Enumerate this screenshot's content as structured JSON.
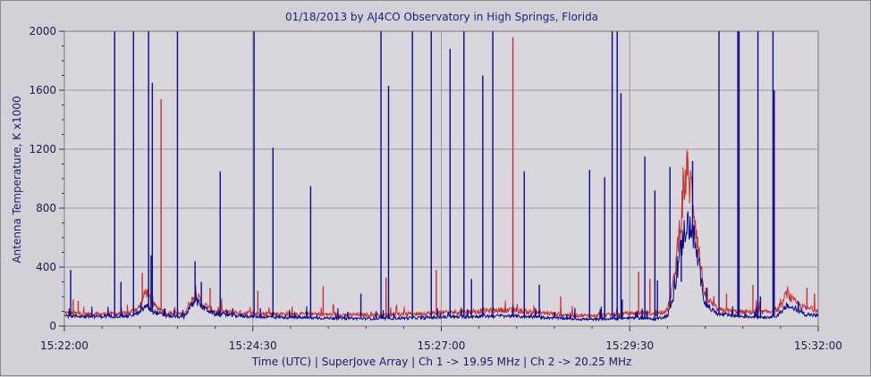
{
  "chart_data": {
    "type": "line",
    "title": "01/18/2013  by  AJ4CO Observatory  in  High Springs, Florida",
    "xlabel": "Time (UTC)  |  SuperJove Array  |  Ch 1 -> 19.95 MHz  |  Ch 2 -> 20.25 MHz",
    "ylabel": "Antenna Temperature, K x1000",
    "ylim": [
      0,
      2000
    ],
    "xlim_seconds_from_start": [
      0,
      600
    ],
    "yticks": [
      "0",
      "400",
      "800",
      "1200",
      "1600",
      "2000"
    ],
    "xticks": [
      "15:22:00",
      "15:24:30",
      "15:27:00",
      "15:29:30",
      "15:32:00"
    ],
    "grid": true,
    "series": [
      {
        "name": "Ch 1 -> 19.95 MHz",
        "color": "#0a0a8a",
        "baseline_points": [
          [
            0,
            70
          ],
          [
            20,
            65
          ],
          [
            50,
            68
          ],
          [
            60,
            90
          ],
          [
            65,
            140
          ],
          [
            70,
            100
          ],
          [
            80,
            70
          ],
          [
            95,
            60
          ],
          [
            100,
            130
          ],
          [
            105,
            170
          ],
          [
            110,
            130
          ],
          [
            120,
            80
          ],
          [
            150,
            65
          ],
          [
            200,
            55
          ],
          [
            250,
            50
          ],
          [
            300,
            60
          ],
          [
            350,
            70
          ],
          [
            380,
            60
          ],
          [
            400,
            50
          ],
          [
            420,
            45
          ],
          [
            440,
            50
          ],
          [
            450,
            55
          ],
          [
            460,
            55
          ],
          [
            470,
            45
          ],
          [
            480,
            70
          ],
          [
            485,
            200
          ],
          [
            490,
            500
          ],
          [
            495,
            700
          ],
          [
            500,
            650
          ],
          [
            505,
            400
          ],
          [
            510,
            150
          ],
          [
            520,
            80
          ],
          [
            540,
            65
          ],
          [
            560,
            60
          ],
          [
            570,
            80
          ],
          [
            575,
            140
          ],
          [
            580,
            120
          ],
          [
            590,
            80
          ],
          [
            600,
            70
          ]
        ],
        "spikes": [
          [
            5,
            380
          ],
          [
            40,
            2000
          ],
          [
            45,
            300
          ],
          [
            55,
            2000
          ],
          [
            61,
            160
          ],
          [
            67,
            2000
          ],
          [
            69,
            480
          ],
          [
            70,
            1650
          ],
          [
            80,
            120
          ],
          [
            90,
            2000
          ],
          [
            104,
            440
          ],
          [
            109,
            300
          ],
          [
            124,
            1050
          ],
          [
            134,
            120
          ],
          [
            151,
            2000
          ],
          [
            156,
            120
          ],
          [
            166,
            1210
          ],
          [
            196,
            950
          ],
          [
            236,
            220
          ],
          [
            252,
            2000
          ],
          [
            258,
            1630
          ],
          [
            277,
            2000
          ],
          [
            292,
            2000
          ],
          [
            307,
            1880
          ],
          [
            318,
            2000
          ],
          [
            324,
            320
          ],
          [
            333,
            1700
          ],
          [
            341,
            2000
          ],
          [
            366,
            1050
          ],
          [
            378,
            280
          ],
          [
            418,
            1060
          ],
          [
            430,
            1010
          ],
          [
            436,
            2000
          ],
          [
            440,
            2000
          ],
          [
            443,
            1580
          ],
          [
            444,
            180
          ],
          [
            462,
            1150
          ],
          [
            470,
            920
          ],
          [
            472,
            310
          ],
          [
            482,
            1080
          ],
          [
            491,
            300
          ],
          [
            500,
            1120
          ],
          [
            511,
            260
          ],
          [
            521,
            2000
          ],
          [
            536,
            2000
          ],
          [
            537,
            2000
          ],
          [
            552,
            2000
          ],
          [
            554,
            200
          ],
          [
            564,
            2000
          ],
          [
            565,
            1600
          ]
        ]
      },
      {
        "name": "Ch 2 -> 20.25 MHz",
        "color": "#c83232",
        "baseline_points": [
          [
            0,
            90
          ],
          [
            20,
            80
          ],
          [
            50,
            85
          ],
          [
            60,
            130
          ],
          [
            65,
            240
          ],
          [
            70,
            150
          ],
          [
            80,
            90
          ],
          [
            95,
            80
          ],
          [
            100,
            160
          ],
          [
            105,
            210
          ],
          [
            110,
            150
          ],
          [
            120,
            100
          ],
          [
            150,
            85
          ],
          [
            200,
            80
          ],
          [
            250,
            75
          ],
          [
            300,
            90
          ],
          [
            350,
            110
          ],
          [
            380,
            90
          ],
          [
            400,
            75
          ],
          [
            420,
            70
          ],
          [
            440,
            80
          ],
          [
            450,
            85
          ],
          [
            460,
            90
          ],
          [
            470,
            80
          ],
          [
            480,
            110
          ],
          [
            485,
            300
          ],
          [
            490,
            700
          ],
          [
            495,
            1050
          ],
          [
            500,
            900
          ],
          [
            505,
            500
          ],
          [
            510,
            200
          ],
          [
            520,
            110
          ],
          [
            540,
            95
          ],
          [
            560,
            95
          ],
          [
            570,
            120
          ],
          [
            575,
            230
          ],
          [
            580,
            170
          ],
          [
            590,
            120
          ],
          [
            600,
            110
          ]
        ],
        "spikes": [
          [
            7,
            180
          ],
          [
            11,
            170
          ],
          [
            62,
            360
          ],
          [
            77,
            1540
          ],
          [
            116,
            260
          ],
          [
            154,
            240
          ],
          [
            206,
            270
          ],
          [
            256,
            330
          ],
          [
            296,
            380
          ],
          [
            357,
            1960
          ],
          [
            395,
            200
          ],
          [
            457,
            370
          ],
          [
            466,
            320
          ],
          [
            496,
            1180
          ],
          [
            527,
            220
          ],
          [
            548,
            280
          ],
          [
            591,
            260
          ],
          [
            597,
            220
          ]
        ]
      }
    ]
  }
}
